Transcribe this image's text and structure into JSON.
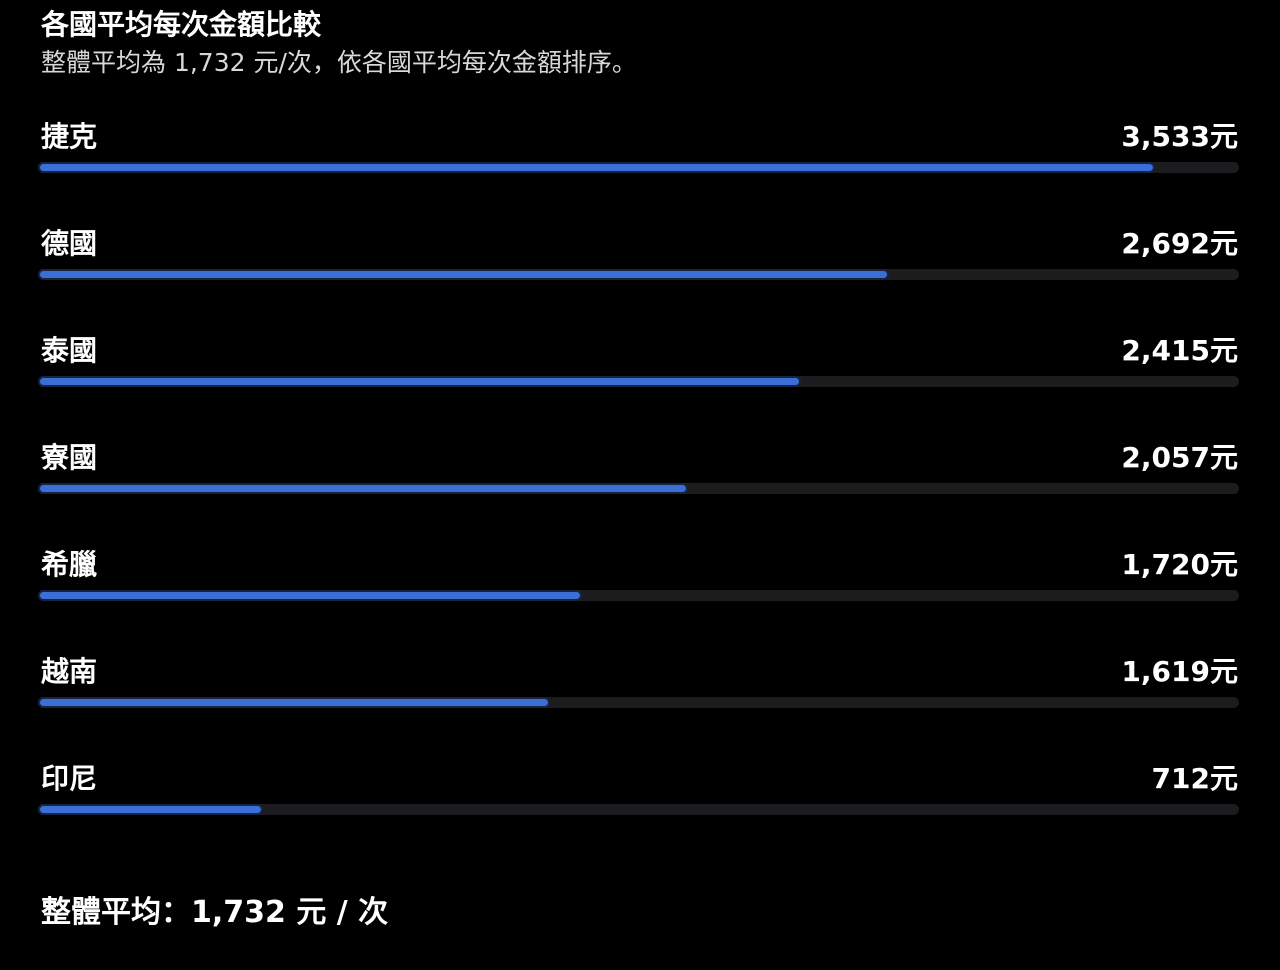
{
  "header": {
    "title": "各國平均每次金額比較",
    "subtitle": "整體平均為 1,732 元/次，依各國平均每次金額排序。"
  },
  "colors": {
    "background": "#000000",
    "bar_fill": "#3b6fd6",
    "bar_track": "#1c1c1e",
    "text": "#ffffff"
  },
  "chart_data": {
    "type": "bar",
    "orientation": "horizontal",
    "title": "各國平均每次金額比較",
    "subtitle": "整體平均為 1,732 元/次，依各國平均每次金額排序。",
    "unit": "元",
    "categories": [
      "捷克",
      "德國",
      "泰國",
      "寮國",
      "希臘",
      "越南",
      "印尼"
    ],
    "values": [
      3533,
      2692,
      2415,
      2057,
      1720,
      1619,
      712
    ],
    "value_labels": [
      "3,533元",
      "2,692元",
      "2,415元",
      "2,057元",
      "1,720元",
      "1,619元",
      "712元"
    ],
    "xlim": [
      0,
      3800
    ],
    "grid": false,
    "legend": "none"
  },
  "footer": {
    "summary": "整體平均：1,732 元 / 次"
  }
}
